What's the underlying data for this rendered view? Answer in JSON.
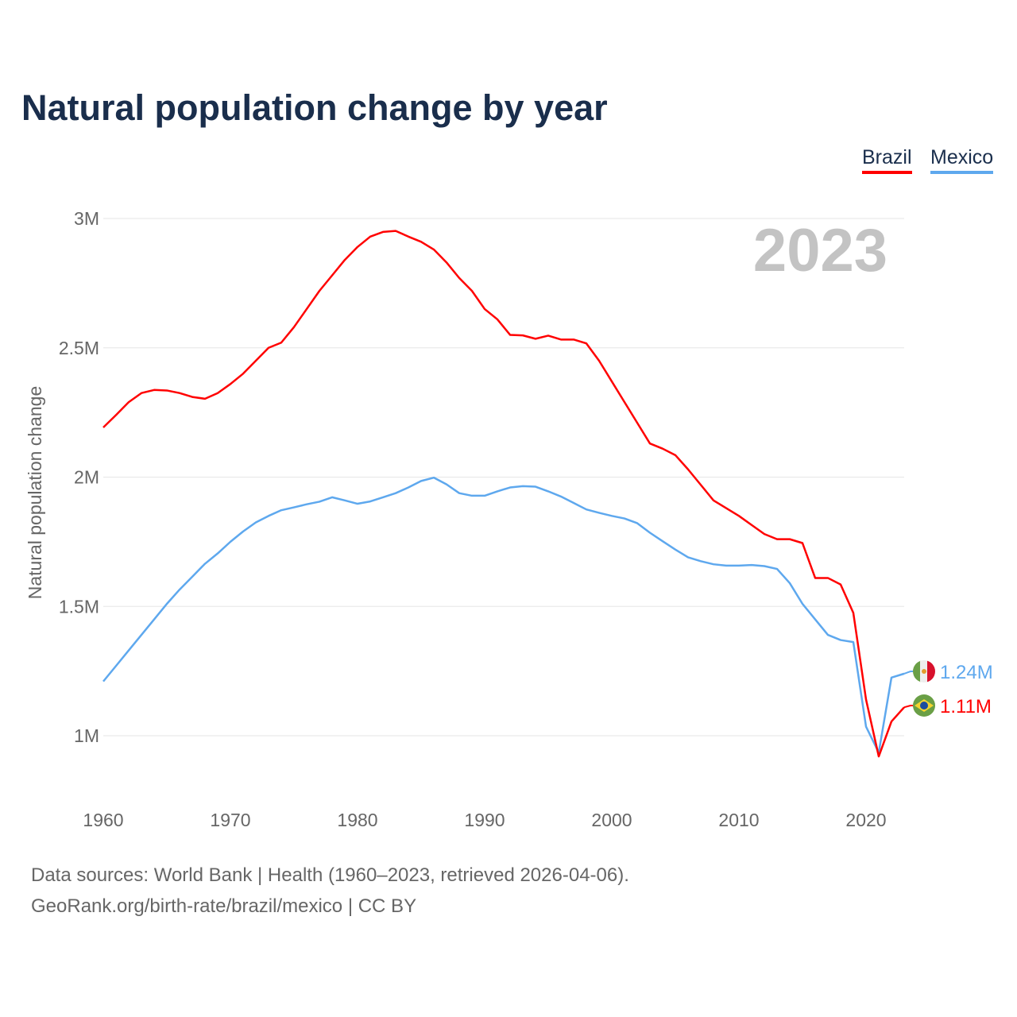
{
  "chart_data": {
    "type": "line",
    "title": "Natural population change by year",
    "xlabel": "",
    "ylabel": "Natural population change",
    "xlim": [
      1960,
      2023
    ],
    "ylim": [
      0.8,
      3.1
    ],
    "yticks": [
      1,
      1.5,
      2,
      2.5,
      3
    ],
    "ytick_labels": [
      "1M",
      "1.5M",
      "2M",
      "2.5M",
      "3M"
    ],
    "xticks": [
      1960,
      1970,
      1980,
      1990,
      2000,
      2010,
      2020
    ],
    "xtick_labels": [
      "1960",
      "1970",
      "1980",
      "1990",
      "2000",
      "2010",
      "2020"
    ],
    "year_label": "2023",
    "grid": true,
    "legend_position": "top-right",
    "unit": "millions",
    "series": [
      {
        "name": "Brazil",
        "color": "#ff0000",
        "end_label": "1.11M",
        "flag": "brazil-flag",
        "values": [
          2.192,
          2.24,
          2.29,
          2.325,
          2.337,
          2.335,
          2.325,
          2.31,
          2.303,
          2.325,
          2.36,
          2.4,
          2.45,
          2.5,
          2.52,
          2.58,
          2.65,
          2.72,
          2.78,
          2.84,
          2.89,
          2.93,
          2.948,
          2.952,
          2.93,
          2.91,
          2.88,
          2.83,
          2.77,
          2.72,
          2.65,
          2.61,
          2.55,
          2.548,
          2.535,
          2.547,
          2.532,
          2.532,
          2.517,
          2.45,
          2.37,
          2.29,
          2.21,
          2.13,
          2.11,
          2.085,
          2.03,
          1.97,
          1.91,
          1.88,
          1.85,
          1.815,
          1.78,
          1.76,
          1.76,
          1.745,
          1.61,
          1.61,
          1.585,
          1.475,
          1.14,
          0.92,
          1.055,
          1.11
        ]
      },
      {
        "name": "Mexico",
        "color": "#5ea8ee",
        "end_label": "1.24M",
        "flag": "mexico-flag",
        "values": [
          1.21,
          1.27,
          1.33,
          1.39,
          1.45,
          1.51,
          1.565,
          1.615,
          1.665,
          1.705,
          1.75,
          1.79,
          1.825,
          1.85,
          1.872,
          1.883,
          1.895,
          1.905,
          1.922,
          1.91,
          1.897,
          1.906,
          1.922,
          1.938,
          1.96,
          1.985,
          1.998,
          1.972,
          1.938,
          1.928,
          1.928,
          1.945,
          1.96,
          1.965,
          1.963,
          1.945,
          1.925,
          1.9,
          1.875,
          1.862,
          1.85,
          1.84,
          1.822,
          1.785,
          1.752,
          1.72,
          1.69,
          1.675,
          1.663,
          1.658,
          1.658,
          1.66,
          1.656,
          1.645,
          1.59,
          1.51,
          1.45,
          1.39,
          1.37,
          1.362,
          1.035,
          0.935,
          1.225,
          1.24
        ]
      }
    ]
  },
  "legend": {
    "brazil": "Brazil",
    "mexico": "Mexico"
  },
  "footer": {
    "line1": "Data sources: World Bank | Health (1960–2023, retrieved 2026-04-06).",
    "line2": "GeoRank.org/birth-rate/brazil/mexico | CC BY"
  }
}
